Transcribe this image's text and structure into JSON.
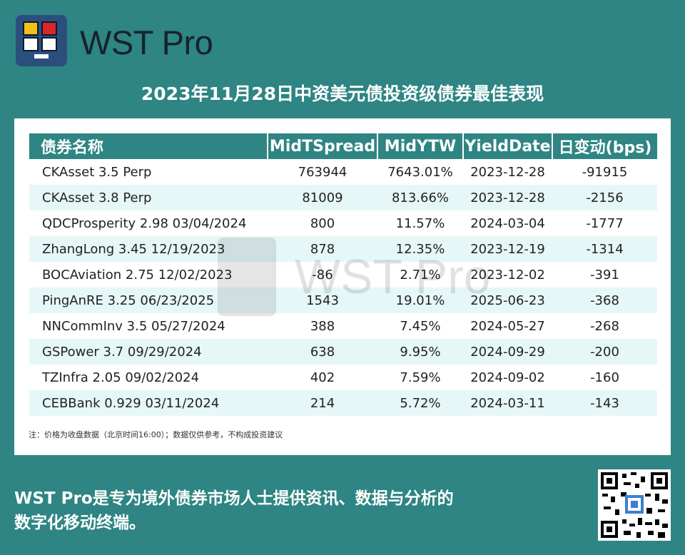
{
  "brand": {
    "name": "WST Pro",
    "watermark": "WST Pro"
  },
  "headline": "2023年11月28日中资美元债投资级债券最佳表现",
  "table": {
    "headers": [
      "债券名称",
      "MidTSpread",
      "MidYTW",
      "YieldDate",
      "日变动(bps)"
    ],
    "rows": [
      [
        "CKAsset 3.5 Perp",
        "763944",
        "7643.01%",
        "2023-12-28",
        "-91915"
      ],
      [
        "CKAsset 3.8 Perp",
        "81009",
        "813.66%",
        "2023-12-28",
        "-2156"
      ],
      [
        "QDCProsperity 2.98 03/04/2024",
        "800",
        "11.57%",
        "2024-03-04",
        "-1777"
      ],
      [
        "ZhangLong 3.45 12/19/2023",
        "878",
        "12.35%",
        "2023-12-19",
        "-1314"
      ],
      [
        "BOCAviation 2.75 12/02/2023",
        "-86",
        "2.71%",
        "2023-12-02",
        "-391"
      ],
      [
        "PingAnRE 3.25 06/23/2025",
        "1543",
        "19.01%",
        "2025-06-23",
        "-368"
      ],
      [
        "NNCommInv 3.5 05/27/2024",
        "388",
        "7.45%",
        "2024-05-27",
        "-268"
      ],
      [
        "GSPower 3.7 09/29/2024",
        "638",
        "9.95%",
        "2024-09-29",
        "-200"
      ],
      [
        "TZInfra 2.05 09/02/2024",
        "402",
        "7.59%",
        "2024-09-02",
        "-160"
      ],
      [
        "CEBBank 0.929 03/11/2024",
        "214",
        "5.72%",
        "2024-03-11",
        "-143"
      ]
    ]
  },
  "note": "注：价格为收盘数据（北京时间16:00）；数据仅供参考，不构成投资建议",
  "footer": {
    "line1": "WST Pro是专为境外债券市场人士提供资讯、数据与分析的",
    "line2": "数字化移动终端。"
  },
  "colors": {
    "background": "#2e8583",
    "header": "#2e8583",
    "stripe": "#e6f7f8",
    "logo": "#2b4f7c"
  }
}
